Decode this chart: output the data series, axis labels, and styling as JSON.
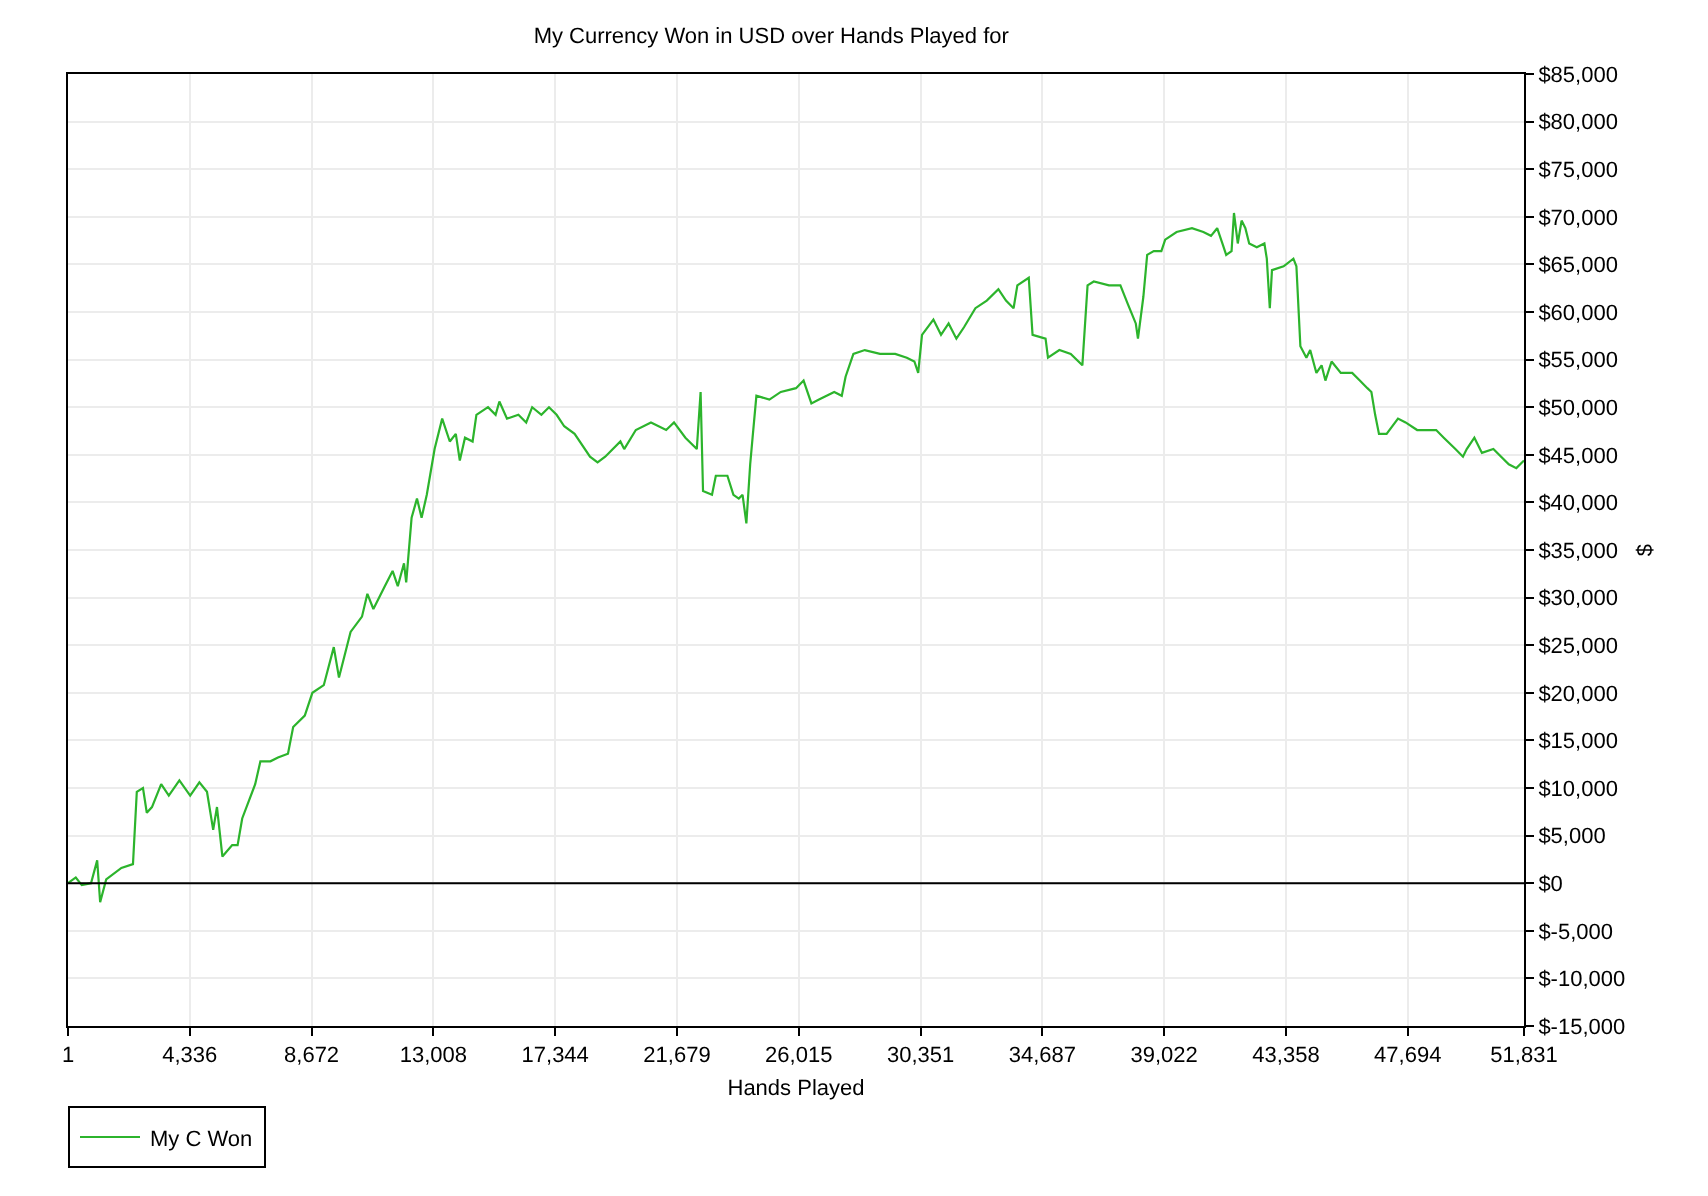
{
  "chart_data": {
    "type": "line",
    "title": "My Currency Won in USD over Hands Played for",
    "xlabel": "Hands Played",
    "ylabel": "$",
    "x": [
      1,
      278,
      491,
      820,
      1040,
      1146,
      1360,
      1901,
      2314,
      2450,
      2670,
      2806,
      2990,
      3318,
      3589,
      3966,
      4350,
      4678,
      4948,
      5169,
      5304,
      5497,
      5846,
      6038,
      6202,
      6664,
      6850,
      7206,
      7476,
      7832,
      8017,
      8430,
      8700,
      9106,
      9462,
      9647,
      10060,
      10466,
      10658,
      10872,
      11278,
      11556,
      11741,
      11962,
      12040,
      12232,
      12424,
      12588,
      12773,
      13051,
      13321,
      13592,
      13806,
      13948,
      14133,
      14404,
      14539,
      14952,
      15223,
      15357,
      15628,
      16034,
      16312,
      16525,
      16852,
      17123,
      17394,
      17665,
      18035,
      18583,
      18853,
      19124,
      19665,
      19800,
      20213,
      20754,
      21295,
      21573,
      21979,
      22385,
      22520,
      22606,
      22926,
      23062,
      23474,
      23688,
      23880,
      24014,
      24149,
      24285,
      24370,
      24506,
      24969,
      25374,
      25916,
      26186,
      26464,
      26735,
      27276,
      27546,
      27681,
      27959,
      28365,
      28906,
      29447,
      29860,
      30130,
      30266,
      30401,
      30807,
      31078,
      31348,
      31625,
      31896,
      32302,
      32707,
      33120,
      33391,
      33661,
      33796,
      34202,
      34337,
      34800,
      34886,
      35292,
      35697,
      36110,
      36295,
      36516,
      37057,
      37463,
      37733,
      38011,
      38089,
      38281,
      38417,
      38652,
      38922,
      39058,
      39464,
      40012,
      40418,
      40688,
      40909,
      41094,
      41229,
      41421,
      41507,
      41642,
      41778,
      41913,
      42048,
      42319,
      42590,
      42675,
      42782,
      42860,
      43273,
      43622,
      43729,
      43871,
      44085,
      44220,
      44441,
      44626,
      44761,
      44982,
      45309,
      45715,
      45986,
      46256,
      46399,
      46533,
      46669,
      46939,
      47345,
      47615,
      48028,
      48299,
      48705,
      48975,
      49388,
      49658,
      49793,
      50064,
      50334,
      50740,
      51288,
      51558,
      51831
    ],
    "series": [
      {
        "name": "My C Won",
        "color": "#2cb42c",
        "values": [
          0,
          600,
          -200,
          0,
          2400,
          -2000,
          400,
          1600,
          2000,
          9600,
          10000,
          7400,
          8000,
          10400,
          9200,
          10800,
          9200,
          10600,
          9600,
          5600,
          8000,
          2800,
          4000,
          4000,
          6800,
          10400,
          12800,
          12800,
          13200,
          13600,
          16400,
          17600,
          20000,
          20800,
          24800,
          21600,
          26400,
          28000,
          30400,
          28800,
          31200,
          32800,
          31200,
          33600,
          31600,
          38400,
          40400,
          38400,
          40800,
          45600,
          48800,
          46400,
          47200,
          44400,
          46800,
          46400,
          49200,
          50000,
          49200,
          50600,
          48800,
          49200,
          48400,
          50000,
          49200,
          50000,
          49200,
          48000,
          47200,
          44800,
          44200,
          44800,
          46400,
          45600,
          47600,
          48400,
          47600,
          48400,
          46800,
          45600,
          51600,
          41200,
          40800,
          42800,
          42800,
          40800,
          40400,
          40800,
          37800,
          44000,
          46800,
          51200,
          50800,
          51600,
          52000,
          52800,
          50400,
          50800,
          51600,
          51200,
          53200,
          55600,
          56000,
          55600,
          55600,
          55200,
          54800,
          53600,
          57600,
          59200,
          57600,
          58800,
          57200,
          58400,
          60400,
          61200,
          62400,
          61200,
          60400,
          62800,
          63600,
          57600,
          57200,
          55200,
          56000,
          55600,
          54400,
          62800,
          63200,
          62800,
          62800,
          60800,
          58800,
          57200,
          61600,
          66000,
          66400,
          66400,
          67600,
          68400,
          68800,
          68400,
          68000,
          68800,
          67200,
          66000,
          66400,
          70400,
          67200,
          69600,
          68800,
          67200,
          66800,
          67200,
          65600,
          60400,
          64400,
          64800,
          65600,
          64800,
          56400,
          55200,
          56000,
          53600,
          54400,
          52800,
          54800,
          53600,
          53600,
          52800,
          52000,
          51600,
          49200,
          47200,
          47200,
          48800,
          48400,
          47600,
          47600,
          47600,
          46800,
          45600,
          44800,
          45600,
          46800,
          45200,
          45600,
          44000,
          43600,
          44400
        ]
      }
    ],
    "xlim": [
      1,
      51831
    ],
    "xticks": [
      1,
      {
        "value": 4336,
        "label": "4,336"
      },
      {
        "value": 8672,
        "label": "8,672"
      },
      {
        "value": 13008,
        "label": "13,008"
      },
      {
        "value": 17344,
        "label": "17,344"
      },
      {
        "value": 21679,
        "label": "21,679"
      },
      {
        "value": 26015,
        "label": "26,015"
      },
      {
        "value": 30351,
        "label": "30,351"
      },
      {
        "value": 34687,
        "label": "34,687"
      },
      {
        "value": 39022,
        "label": "39,022"
      },
      {
        "value": 43358,
        "label": "43,358"
      },
      {
        "value": 47694,
        "label": "47,694"
      },
      {
        "value": 51831,
        "label": "51,831"
      }
    ],
    "ylim": [
      -15000,
      85000
    ],
    "yticks": [
      {
        "value": -15000,
        "label": "$-15,000"
      },
      {
        "value": -10000,
        "label": "$-10,000"
      },
      {
        "value": -5000,
        "label": "$-5,000"
      },
      {
        "value": 0,
        "label": "$0"
      },
      {
        "value": 5000,
        "label": "$5,000"
      },
      {
        "value": 10000,
        "label": "$10,000"
      },
      {
        "value": 15000,
        "label": "$15,000"
      },
      {
        "value": 20000,
        "label": "$20,000"
      },
      {
        "value": 25000,
        "label": "$25,000"
      },
      {
        "value": 30000,
        "label": "$30,000"
      },
      {
        "value": 35000,
        "label": "$35,000"
      },
      {
        "value": 40000,
        "label": "$40,000"
      },
      {
        "value": 45000,
        "label": "$45,000"
      },
      {
        "value": 50000,
        "label": "$50,000"
      },
      {
        "value": 55000,
        "label": "$55,000"
      },
      {
        "value": 60000,
        "label": "$60,000"
      },
      {
        "value": 65000,
        "label": "$65,000"
      },
      {
        "value": 70000,
        "label": "$70,000"
      },
      {
        "value": 75000,
        "label": "$75,000"
      },
      {
        "value": 80000,
        "label": "$80,000"
      },
      {
        "value": 85000,
        "label": "$85,000"
      }
    ],
    "ref_lines": [
      {
        "axis": "y",
        "value": 0,
        "color": "#000000"
      }
    ],
    "grid": true,
    "legend": "bottom left",
    "line_style": "solid"
  }
}
